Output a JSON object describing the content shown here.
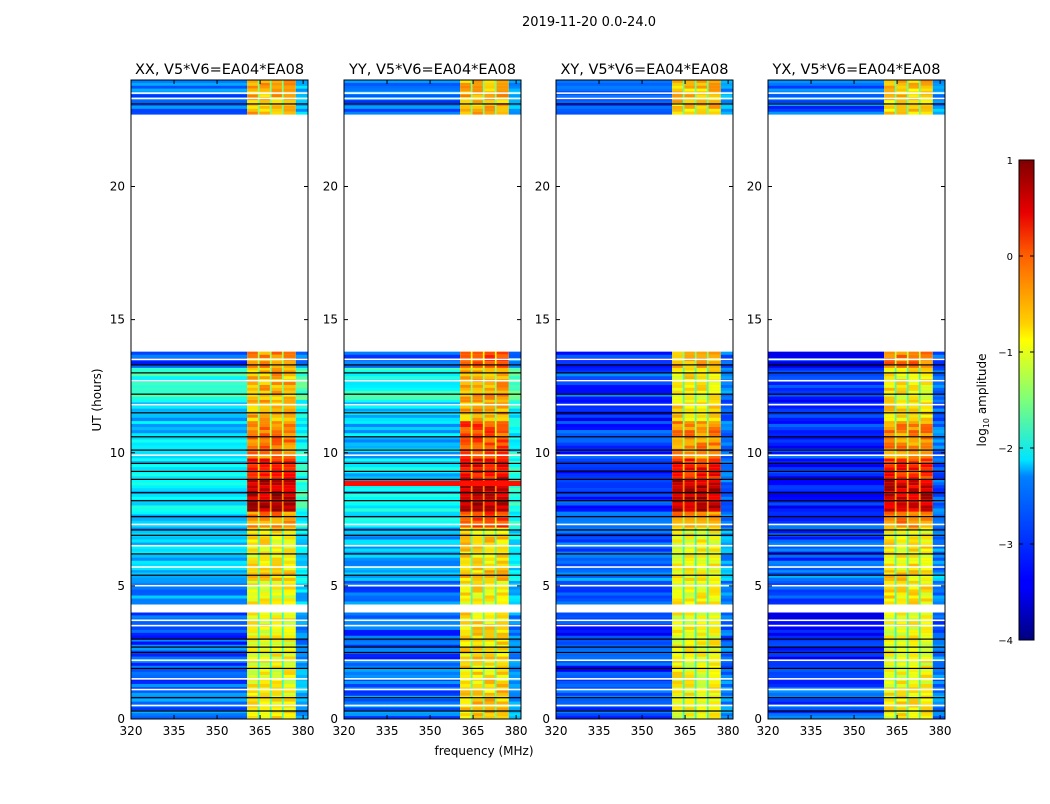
{
  "chart_data": {
    "type": "heatmap",
    "title": "2019-11-20 0.0-24.0",
    "xlabel": "frequency (MHz)",
    "ylabel": "UT (hours)",
    "xlim": [
      320,
      381.7
    ],
    "ylim": [
      0,
      24
    ],
    "xticks": [
      "320",
      "335",
      "350",
      "365",
      "380"
    ],
    "xtick_values": [
      320,
      335,
      350,
      365,
      380
    ],
    "yticks": [
      "0",
      "5",
      "10",
      "15",
      "20"
    ],
    "ytick_values": [
      0,
      5,
      10,
      15,
      20
    ],
    "colorbar": {
      "label_main": "log",
      "label_sub": "10",
      "label_tail": " amplitude",
      "range": [
        -4,
        1
      ],
      "ticks": [
        "−4",
        "−3",
        "−2",
        "−1",
        "0",
        "1"
      ],
      "tick_values": [
        -4,
        -3,
        -2,
        -1,
        0,
        1
      ],
      "colormap": "jet"
    },
    "rfi_subbands_mhz": [
      [
        360.5,
        364.2
      ],
      [
        364.8,
        368.4
      ],
      [
        369.0,
        372.6
      ],
      [
        373.2,
        377.4
      ]
    ],
    "flagged_hours": [
      [
        4.0,
        4.3
      ],
      [
        13.8,
        22.7
      ]
    ],
    "black_lines_hours": [
      0.3,
      0.8,
      1.9,
      2.5,
      2.7,
      3.0,
      5.4,
      6.2,
      6.9,
      7.1,
      7.6,
      8.2,
      8.5,
      9.0,
      9.3,
      9.6,
      10.1,
      10.6,
      11.5,
      12.2,
      13.0,
      13.3,
      23.1
    ],
    "white_lines_hours": [
      0.5,
      1.1,
      1.5,
      2.2,
      3.5,
      3.7,
      5.0,
      5.7,
      6.5,
      7.3,
      9.9,
      11.8,
      12.7,
      13.5,
      23.3,
      23.5
    ],
    "panels": [
      {
        "title": "XX, V5*V6=EA04*EA08",
        "segments": [
          {
            "t": [
              0,
              1.2
            ],
            "bg": -2.8,
            "rfi": -0.8
          },
          {
            "t": [
              1.2,
              2.8
            ],
            "bg": -2.9,
            "rfi": -0.9
          },
          {
            "t": [
              2.8,
              4.0
            ],
            "bg": -3.0,
            "rfi": -0.9
          },
          {
            "t": [
              4.3,
              5.2
            ],
            "bg": -2.7,
            "rfi": -0.9
          },
          {
            "t": [
              5.2,
              5.6
            ],
            "bg": -2.5,
            "rfi": -0.7
          },
          {
            "t": [
              5.6,
              7.2
            ],
            "bg": -2.5,
            "rfi": -0.8
          },
          {
            "t": [
              7.2,
              7.8
            ],
            "bg": -2.3,
            "rfi": -0.3
          },
          {
            "t": [
              7.8,
              9.0
            ],
            "bg": -2.2,
            "rfi": 0.7
          },
          {
            "t": [
              9.0,
              9.8
            ],
            "bg": -2.3,
            "rfi": 0.3
          },
          {
            "t": [
              9.8,
              11.2
            ],
            "bg": -2.4,
            "rfi": -0.2
          },
          {
            "t": [
              11.2,
              12.0
            ],
            "bg": -2.4,
            "rfi": -0.5
          },
          {
            "t": [
              12.0,
              13.2
            ],
            "bg": -2.0,
            "rfi": -0.5
          },
          {
            "t": [
              13.2,
              13.8
            ],
            "bg": -3.0,
            "rfi": -0.3
          },
          {
            "t": [
              22.7,
              24
            ],
            "bg": -2.8,
            "rfi": -0.5
          }
        ],
        "rfi_line": null
      },
      {
        "title": "YY, V5*V6=EA04*EA08",
        "segments": [
          {
            "t": [
              0,
              1.2
            ],
            "bg": -2.8,
            "rfi": -0.6
          },
          {
            "t": [
              1.2,
              2.8
            ],
            "bg": -2.9,
            "rfi": -0.7
          },
          {
            "t": [
              2.8,
              4.0
            ],
            "bg": -3.0,
            "rfi": -0.7
          },
          {
            "t": [
              4.3,
              5.2
            ],
            "bg": -2.8,
            "rfi": -0.8
          },
          {
            "t": [
              5.2,
              5.6
            ],
            "bg": -2.5,
            "rfi": -0.6
          },
          {
            "t": [
              5.6,
              7.2
            ],
            "bg": -2.5,
            "rfi": -0.7
          },
          {
            "t": [
              7.2,
              7.8
            ],
            "bg": -2.3,
            "rfi": 0.0
          },
          {
            "t": [
              7.8,
              9.0
            ],
            "bg": -2.2,
            "rfi": 0.7
          },
          {
            "t": [
              9.0,
              9.8
            ],
            "bg": -2.3,
            "rfi": 0.4
          },
          {
            "t": [
              9.8,
              11.2
            ],
            "bg": -2.4,
            "rfi": 0.0
          },
          {
            "t": [
              11.2,
              12.0
            ],
            "bg": -2.4,
            "rfi": -0.5
          },
          {
            "t": [
              12.0,
              13.2
            ],
            "bg": -2.0,
            "rfi": -0.4
          },
          {
            "t": [
              13.2,
              13.8
            ],
            "bg": -3.0,
            "rfi": 0.1
          },
          {
            "t": [
              22.7,
              24
            ],
            "bg": -2.8,
            "rfi": -0.5
          }
        ],
        "rfi_line": {
          "t": [
            8.75,
            8.95
          ],
          "level": 0.3
        }
      },
      {
        "title": "XY, V5*V6=EA04*EA08",
        "segments": [
          {
            "t": [
              0,
              1.2
            ],
            "bg": -3.0,
            "rfi": -0.9
          },
          {
            "t": [
              1.2,
              2.8
            ],
            "bg": -3.1,
            "rfi": -0.9
          },
          {
            "t": [
              2.8,
              4.0
            ],
            "bg": -3.2,
            "rfi": -0.9
          },
          {
            "t": [
              4.3,
              5.2
            ],
            "bg": -3.0,
            "rfi": -0.9
          },
          {
            "t": [
              5.2,
              5.6
            ],
            "bg": -2.8,
            "rfi": -0.8
          },
          {
            "t": [
              5.6,
              7.2
            ],
            "bg": -2.9,
            "rfi": -0.9
          },
          {
            "t": [
              7.2,
              7.8
            ],
            "bg": -3.0,
            "rfi": -0.3
          },
          {
            "t": [
              7.8,
              9.0
            ],
            "bg": -3.1,
            "rfi": 0.7
          },
          {
            "t": [
              9.0,
              9.8
            ],
            "bg": -3.2,
            "rfi": 0.3
          },
          {
            "t": [
              9.8,
              11.2
            ],
            "bg": -3.1,
            "rfi": -0.3
          },
          {
            "t": [
              11.2,
              12.0
            ],
            "bg": -3.2,
            "rfi": -0.7
          },
          {
            "t": [
              12.0,
              13.2
            ],
            "bg": -3.0,
            "rfi": -0.8
          },
          {
            "t": [
              13.2,
              13.8
            ],
            "bg": -3.2,
            "rfi": -0.5
          },
          {
            "t": [
              22.7,
              24
            ],
            "bg": -2.9,
            "rfi": -0.6
          }
        ],
        "rfi_line": null
      },
      {
        "title": "YX, V5*V6=EA04*EA08",
        "segments": [
          {
            "t": [
              0,
              1.2
            ],
            "bg": -3.0,
            "rfi": -0.8
          },
          {
            "t": [
              1.2,
              2.8
            ],
            "bg": -3.1,
            "rfi": -0.9
          },
          {
            "t": [
              2.8,
              4.0
            ],
            "bg": -3.2,
            "rfi": -0.9
          },
          {
            "t": [
              4.3,
              5.2
            ],
            "bg": -3.0,
            "rfi": -0.8
          },
          {
            "t": [
              5.2,
              5.6
            ],
            "bg": -2.8,
            "rfi": -0.7
          },
          {
            "t": [
              5.6,
              7.2
            ],
            "bg": -3.0,
            "rfi": -0.8
          },
          {
            "t": [
              7.2,
              7.8
            ],
            "bg": -3.1,
            "rfi": -0.3
          },
          {
            "t": [
              7.8,
              9.0
            ],
            "bg": -3.2,
            "rfi": 0.6
          },
          {
            "t": [
              9.0,
              9.8
            ],
            "bg": -3.2,
            "rfi": 0.2
          },
          {
            "t": [
              9.8,
              11.2
            ],
            "bg": -3.1,
            "rfi": -0.3
          },
          {
            "t": [
              11.2,
              12.0
            ],
            "bg": -3.2,
            "rfi": -0.7
          },
          {
            "t": [
              12.0,
              13.2
            ],
            "bg": -3.1,
            "rfi": -0.8
          },
          {
            "t": [
              13.2,
              13.8
            ],
            "bg": -3.2,
            "rfi": -0.2
          },
          {
            "t": [
              22.7,
              24
            ],
            "bg": -2.9,
            "rfi": -0.6
          }
        ],
        "rfi_line": null
      }
    ]
  }
}
